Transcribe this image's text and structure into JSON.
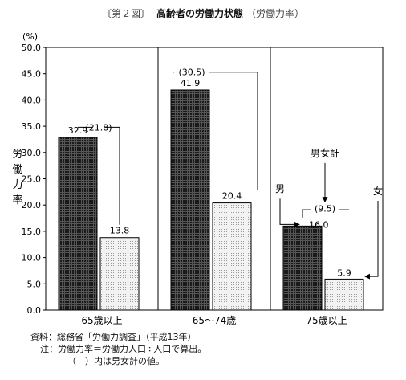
{
  "title": {
    "tag": "〔第２図〕",
    "main": "高齢者の労働力状態",
    "sub": "（労働力率）"
  },
  "chart_data": {
    "type": "bar",
    "categories": [
      "65歳以上",
      "65～74歳",
      "75歳以上"
    ],
    "series": [
      {
        "name": "男",
        "values": [
          32.9,
          41.9,
          16.0
        ],
        "pattern": "dark-hatch"
      },
      {
        "name": "女",
        "values": [
          13.8,
          20.4,
          5.9
        ],
        "pattern": "light-dots"
      }
    ],
    "totals": {
      "name": "男女計",
      "values": [
        "(21.8)",
        "(30.5)",
        "(9.5)"
      ]
    },
    "value_labels": [
      [
        "32.9",
        "41.9",
        "16.0"
      ],
      [
        "13.8",
        "20.4",
        "5.9"
      ]
    ],
    "ylabel": "労働力率",
    "yunit": "(%)",
    "ylim": [
      0,
      50
    ],
    "yticks": [
      "0.0",
      "5.0",
      "10.0",
      "15.0",
      "20.0",
      "25.0",
      "30.0",
      "35.0",
      "40.0",
      "45.0",
      "50.0"
    ],
    "grid": false,
    "annotations": {
      "men": "男",
      "women": "女",
      "total": "男女計"
    },
    "colors": {
      "axis": "#000000",
      "dark_bar": "#3a3a3a",
      "light_bar": "#e6e6e6"
    }
  },
  "notes": {
    "source": "資料：総務省「労働力調査」（平成13年）",
    "note1": "注：労働力率＝労働力人口÷人口で算出。",
    "note2": "（　）内は男女計の値。"
  }
}
